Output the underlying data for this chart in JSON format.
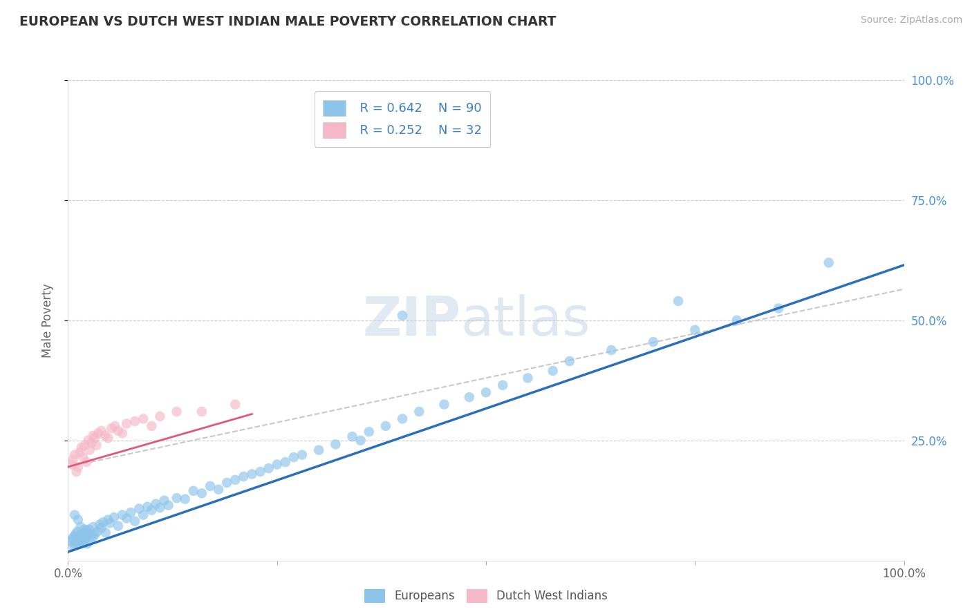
{
  "title": "EUROPEAN VS DUTCH WEST INDIAN MALE POVERTY CORRELATION CHART",
  "source": "Source: ZipAtlas.com",
  "ylabel_label": "Male Poverty",
  "xlim": [
    0,
    1
  ],
  "ylim": [
    0,
    1
  ],
  "xticks": [
    0,
    0.25,
    0.5,
    0.75,
    1.0
  ],
  "xtick_labels": [
    "0.0%",
    "",
    "",
    "",
    "100.0%"
  ],
  "ytick_positions": [
    0.25,
    0.5,
    0.75,
    1.0
  ],
  "ytick_labels": [
    "25.0%",
    "50.0%",
    "75.0%",
    "100.0%"
  ],
  "europeans_color": "#8dc4ea",
  "dutch_color": "#f5b8c8",
  "regression_blue_color": "#2a6fba",
  "regression_pink_color": "#e05878",
  "regression_gray_color": "#c8c8c8",
  "legend_R1": "R = 0.642",
  "legend_N1": "N = 90",
  "legend_R2": "R = 0.252",
  "legend_N2": "N = 32",
  "legend_label1": "Europeans",
  "legend_label2": "Dutch West Indians",
  "eu_x": [
    0.003,
    0.005,
    0.006,
    0.007,
    0.008,
    0.009,
    0.01,
    0.011,
    0.012,
    0.013,
    0.014,
    0.015,
    0.016,
    0.017,
    0.018,
    0.019,
    0.02,
    0.021,
    0.022,
    0.023,
    0.025,
    0.027,
    0.03,
    0.032,
    0.035,
    0.038,
    0.04,
    0.042,
    0.045,
    0.048,
    0.05,
    0.055,
    0.06,
    0.065,
    0.07,
    0.075,
    0.08,
    0.085,
    0.09,
    0.095,
    0.1,
    0.105,
    0.11,
    0.115,
    0.12,
    0.13,
    0.14,
    0.15,
    0.16,
    0.17,
    0.18,
    0.19,
    0.2,
    0.21,
    0.22,
    0.23,
    0.24,
    0.25,
    0.26,
    0.27,
    0.28,
    0.3,
    0.32,
    0.34,
    0.36,
    0.38,
    0.4,
    0.42,
    0.45,
    0.48,
    0.5,
    0.52,
    0.55,
    0.58,
    0.6,
    0.65,
    0.7,
    0.75,
    0.8,
    0.85,
    0.008,
    0.012,
    0.015,
    0.02,
    0.025,
    0.03,
    0.35,
    0.4,
    0.73,
    0.91
  ],
  "eu_y": [
    0.04,
    0.045,
    0.03,
    0.05,
    0.035,
    0.055,
    0.04,
    0.06,
    0.045,
    0.038,
    0.048,
    0.042,
    0.055,
    0.038,
    0.052,
    0.043,
    0.058,
    0.047,
    0.062,
    0.035,
    0.065,
    0.048,
    0.07,
    0.055,
    0.06,
    0.075,
    0.068,
    0.08,
    0.058,
    0.085,
    0.078,
    0.09,
    0.072,
    0.095,
    0.088,
    0.1,
    0.082,
    0.108,
    0.095,
    0.112,
    0.105,
    0.118,
    0.11,
    0.125,
    0.115,
    0.13,
    0.128,
    0.145,
    0.14,
    0.155,
    0.148,
    0.162,
    0.168,
    0.175,
    0.18,
    0.185,
    0.192,
    0.2,
    0.205,
    0.215,
    0.22,
    0.23,
    0.242,
    0.258,
    0.268,
    0.28,
    0.295,
    0.31,
    0.325,
    0.34,
    0.35,
    0.365,
    0.38,
    0.395,
    0.415,
    0.438,
    0.455,
    0.48,
    0.5,
    0.525,
    0.095,
    0.085,
    0.07,
    0.065,
    0.055,
    0.05,
    0.25,
    0.51,
    0.54,
    0.62
  ],
  "du_x": [
    0.004,
    0.006,
    0.008,
    0.01,
    0.012,
    0.014,
    0.016,
    0.018,
    0.02,
    0.022,
    0.024,
    0.026,
    0.028,
    0.03,
    0.032,
    0.034,
    0.036,
    0.04,
    0.044,
    0.048,
    0.052,
    0.056,
    0.06,
    0.065,
    0.07,
    0.08,
    0.09,
    0.1,
    0.11,
    0.13,
    0.16,
    0.2
  ],
  "du_y": [
    0.2,
    0.21,
    0.22,
    0.185,
    0.195,
    0.225,
    0.235,
    0.215,
    0.24,
    0.205,
    0.25,
    0.23,
    0.245,
    0.26,
    0.255,
    0.24,
    0.265,
    0.27,
    0.26,
    0.255,
    0.275,
    0.28,
    0.27,
    0.265,
    0.285,
    0.29,
    0.295,
    0.28,
    0.3,
    0.31,
    0.31,
    0.325
  ],
  "eu_line_x0": 0.0,
  "eu_line_y0": 0.018,
  "eu_line_x1": 1.0,
  "eu_line_y1": 0.615,
  "pink_line_x0": 0.0,
  "pink_line_y0": 0.195,
  "pink_line_x1": 0.22,
  "pink_line_y1": 0.305,
  "gray_line_x0": 0.0,
  "gray_line_y0": 0.195,
  "gray_line_x1": 1.0,
  "gray_line_y1": 0.565
}
